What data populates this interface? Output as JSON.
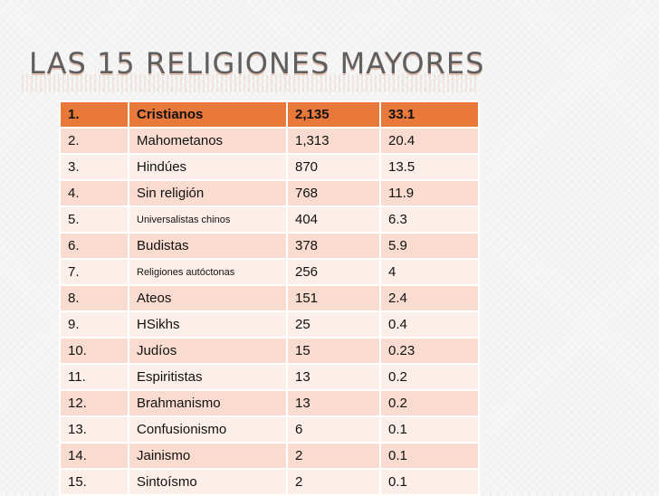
{
  "slide": {
    "title": "LAS 15 RELIGIONES MAYORES"
  },
  "table": {
    "rows": [
      {
        "rank": "1.",
        "name": "Cristianos",
        "value": "2,135",
        "percent": "33.1"
      },
      {
        "rank": "2.",
        "name": "Mahometanos",
        "value": "1,313",
        "percent": "20.4"
      },
      {
        "rank": "3.",
        "name": " Hindúes",
        "value": "870",
        "percent": "13.5"
      },
      {
        "rank": "4.",
        "name": "Sin religión",
        "value": "768",
        "percent": "11.9"
      },
      {
        "rank": "5.",
        "name": "Universalistas chinos",
        "value": "404",
        "percent": "6.3"
      },
      {
        "rank": "6.",
        "name": "Budistas",
        "value": "378",
        "percent": "5.9"
      },
      {
        "rank": "7.",
        "name": "Religiones autóctonas",
        "value": "256",
        "percent": "4"
      },
      {
        "rank": "8.",
        "name": "Ateos",
        "value": "151",
        "percent": "2.4"
      },
      {
        "rank": "9.",
        "name": "HSikhs",
        "value": "25",
        "percent": "0.4"
      },
      {
        "rank": "10.",
        "name": "Judíos",
        "value": "15",
        "percent": "0.23"
      },
      {
        "rank": "11.",
        "name": "Espiritistas",
        "value": "13",
        "percent": "0.2"
      },
      {
        "rank": "12.",
        "name": "Brahmanismo",
        "value": "13",
        "percent": "0.2"
      },
      {
        "rank": "13.",
        "name": "Confusionismo",
        "value": "6",
        "percent": "0.1"
      },
      {
        "rank": "14.",
        "name": "Jainismo",
        "value": "2",
        "percent": "0.1"
      },
      {
        "rank": "15.",
        "name": " Sintoísmo",
        "value": "2",
        "percent": "0.1"
      }
    ]
  },
  "colors": {
    "header_row": "#e8793b",
    "odd_row": "#f9dccf",
    "even_row": "#fcefea",
    "title_text": "#5f5f5f"
  }
}
